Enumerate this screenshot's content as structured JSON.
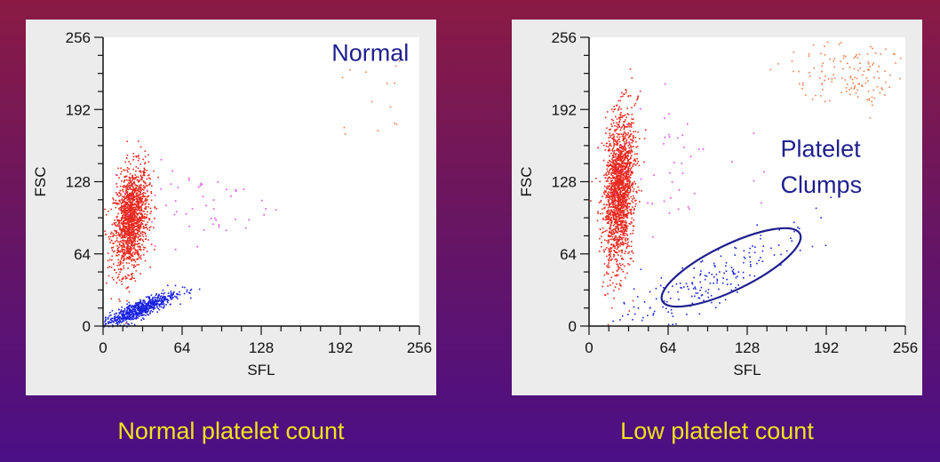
{
  "chart_data": [
    {
      "type": "scatter",
      "xlabel": "SFL",
      "ylabel": "FSC",
      "xlim": [
        0,
        256
      ],
      "ylim": [
        0,
        256
      ],
      "x_ticks": [
        "0",
        "64",
        "128",
        "192",
        "256"
      ],
      "y_ticks": [
        "0",
        "64",
        "128",
        "192",
        "256"
      ],
      "grid": false,
      "annotations": [
        {
          "text": "Normal",
          "x": 185,
          "y": 235
        }
      ],
      "caption": "Normal platelet count",
      "series": [
        {
          "color": "#e8281e",
          "points": 1500,
          "center": [
            22,
            95
          ],
          "spread": [
            7,
            22
          ],
          "tilt": 0.9
        },
        {
          "color": "#1a22e0",
          "points": 700,
          "center": [
            28,
            15
          ],
          "spread": [
            15,
            4
          ],
          "tilt": 0.45
        },
        {
          "color": "#e042e8",
          "points": 55,
          "center": [
            70,
            110
          ],
          "spread": [
            35,
            18
          ],
          "tilt": 0
        },
        {
          "color": "#f07a40",
          "points": 14,
          "center": [
            215,
            200
          ],
          "spread": [
            30,
            30
          ],
          "tilt": 0
        }
      ]
    },
    {
      "type": "scatter",
      "xlabel": "SFL",
      "ylabel": "FSC",
      "xlim": [
        0,
        256
      ],
      "ylim": [
        0,
        256
      ],
      "x_ticks": [
        "0",
        "64",
        "128",
        "192",
        "256"
      ],
      "y_ticks": [
        "0",
        "64",
        "128",
        "192",
        "256"
      ],
      "grid": false,
      "annotations": [
        {
          "text": "Platelet",
          "x": 155,
          "y": 150
        },
        {
          "text": "Clumps",
          "x": 155,
          "y": 118
        }
      ],
      "highlight_ellipse": {
        "center": [
          115,
          52
        ],
        "rx": 62,
        "ry": 20,
        "angle_deg": -26
      },
      "caption": "Low platelet count",
      "series": [
        {
          "color": "#e8281e",
          "points": 1800,
          "center": [
            24,
            120
          ],
          "spread": [
            6,
            32
          ],
          "tilt": 1.4
        },
        {
          "color": "#1a22e0",
          "points": 190,
          "center": [
            95,
            40
          ],
          "spread": [
            40,
            12
          ],
          "tilt": 0.5
        },
        {
          "color": "#e042e8",
          "points": 45,
          "center": [
            70,
            150
          ],
          "spread": [
            25,
            30
          ],
          "tilt": 0
        },
        {
          "color": "#f07a40",
          "points": 140,
          "center": [
            210,
            225
          ],
          "spread": [
            25,
            15
          ],
          "tilt": 0
        }
      ]
    }
  ]
}
